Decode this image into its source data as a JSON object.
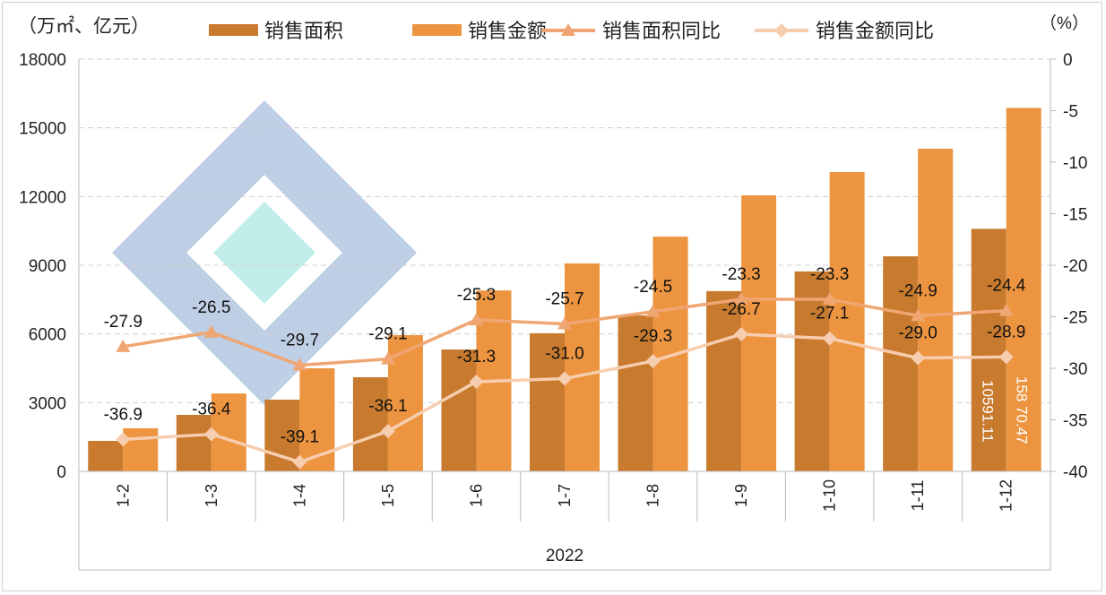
{
  "chart_data": {
    "type": "bar+line",
    "left_unit_label": "（万㎡、亿元）",
    "right_unit_label": "（%）",
    "categories": [
      "1-2",
      "1-3",
      "1-4",
      "1-5",
      "1-6",
      "1-7",
      "1-8",
      "1-9",
      "1-10",
      "1-11",
      "1-12"
    ],
    "group_label": "2022",
    "left_axis": {
      "min": 0,
      "max": 18000,
      "ticks": [
        "0",
        "3000",
        "6000",
        "9000",
        "12000",
        "15000",
        "18000"
      ]
    },
    "right_axis": {
      "min": -40,
      "max": 0,
      "ticks": [
        "0",
        "-5",
        "-10",
        "-15",
        "-20",
        "-25",
        "-30",
        "-35",
        "-40"
      ]
    },
    "grid": true,
    "legend_position": "top",
    "series": [
      {
        "name": "销售面积",
        "kind": "bar",
        "axis": "left",
        "color": "#c87a2e",
        "values": [
          1330,
          2465,
          3130,
          4110,
          5320,
          6030,
          6810,
          7870,
          8730,
          9390,
          10591.11
        ]
      },
      {
        "name": "销售金额",
        "kind": "bar",
        "axis": "left",
        "color": "#ed9440",
        "values": [
          1880,
          3400,
          4500,
          5950,
          7900,
          9080,
          10250,
          12050,
          13070,
          14090,
          15870.47
        ]
      },
      {
        "name": "销售面积同比",
        "kind": "line",
        "marker": "triangle",
        "axis": "right",
        "color": "#f0a673",
        "values": [
          -27.9,
          -26.5,
          -29.7,
          -29.1,
          -25.3,
          -25.7,
          -24.5,
          -23.3,
          -23.3,
          -24.9,
          -24.4
        ]
      },
      {
        "name": "销售金额同比",
        "kind": "line",
        "marker": "diamond",
        "axis": "right",
        "color": "#f7cdb0",
        "values": [
          -36.9,
          -36.4,
          -39.1,
          -36.1,
          -31.3,
          -31.0,
          -29.3,
          -26.7,
          -27.1,
          -29.0,
          -28.9
        ]
      }
    ],
    "bar_data_labels": {
      "area_last": "10591.11",
      "amount_last": "158 70.47"
    }
  }
}
